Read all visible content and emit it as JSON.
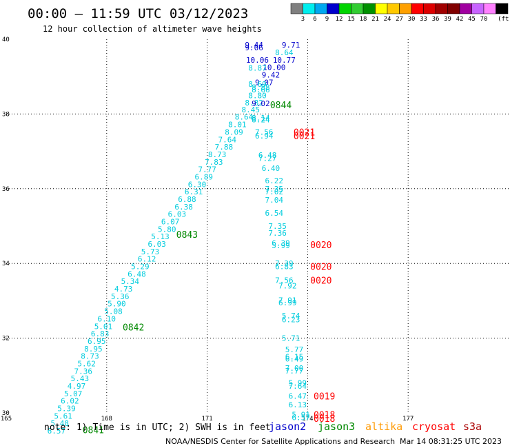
{
  "header": {
    "title": "00:00 – 11:59 UTC 03/12/2023",
    "subtitle": "12 hour collection of altimeter wave heights"
  },
  "colorbar": {
    "colors": [
      "#808080",
      "#00eeee",
      "#00a8f0",
      "#0000cc",
      "#00d400",
      "#32cd32",
      "#009000",
      "#ffff00",
      "#ffc800",
      "#ffa000",
      "#ff0000",
      "#dd0000",
      "#a00000",
      "#800000",
      "#a000a0",
      "#c864ff",
      "#ff80ff",
      "#000000"
    ],
    "labels": [
      "3",
      "6",
      "9",
      "12",
      "15",
      "18",
      "21",
      "24",
      "27",
      "30",
      "33",
      "36",
      "39",
      "42",
      "45",
      "70"
    ],
    "unit": "(ft)"
  },
  "map_frame": {
    "lon_range": [
      165,
      180
    ],
    "lat_range": [
      30,
      40
    ],
    "lon_ticks": [
      "165",
      "168",
      "171",
      "174",
      "177"
    ],
    "lat_ticks": [
      "40",
      "38",
      "36",
      "34",
      "32",
      "30"
    ],
    "grid_color": "#000000"
  },
  "chart_data": {
    "type": "scatter",
    "colors": {
      "wave_label": "#00ccdd",
      "wave_label_dark": "#0000cc",
      "time_green": "#008800",
      "time_red": "#ff0000"
    },
    "wave_labels": [
      {
        "lon": 172.4,
        "lat": 39.85,
        "text": "9.44",
        "tone": "dark"
      },
      {
        "lon": 172.4,
        "lat": 39.78,
        "text": "9.06",
        "tone": "dark"
      },
      {
        "lon": 173.5,
        "lat": 39.85,
        "text": "9.71",
        "tone": "dark"
      },
      {
        "lon": 173.3,
        "lat": 39.65,
        "text": "8.64",
        "tone": "light"
      },
      {
        "lon": 172.5,
        "lat": 39.45,
        "text": "10.06",
        "tone": "dark"
      },
      {
        "lon": 173.3,
        "lat": 39.45,
        "text": "10.77",
        "tone": "dark"
      },
      {
        "lon": 173.0,
        "lat": 39.25,
        "text": "10.00",
        "tone": "dark"
      },
      {
        "lon": 172.5,
        "lat": 39.23,
        "text": "8.87",
        "tone": "light"
      },
      {
        "lon": 172.9,
        "lat": 39.05,
        "text": "9.42",
        "tone": "dark"
      },
      {
        "lon": 172.7,
        "lat": 38.85,
        "text": "9.07",
        "tone": "dark"
      },
      {
        "lon": 172.5,
        "lat": 38.8,
        "text": "8.69",
        "tone": "light"
      },
      {
        "lon": 172.6,
        "lat": 38.72,
        "text": "8.88",
        "tone": "light"
      },
      {
        "lon": 172.6,
        "lat": 38.65,
        "text": "8.66",
        "tone": "light"
      },
      {
        "lon": 172.5,
        "lat": 38.5,
        "text": "8.80",
        "tone": "light"
      },
      {
        "lon": 172.4,
        "lat": 38.3,
        "text": "8.82",
        "tone": "light"
      },
      {
        "lon": 172.6,
        "lat": 38.28,
        "text": "9.02",
        "tone": "dark"
      },
      {
        "lon": 172.3,
        "lat": 38.12,
        "text": "8.45",
        "tone": "light"
      },
      {
        "lon": 172.1,
        "lat": 37.92,
        "text": "8.64",
        "tone": "light"
      },
      {
        "lon": 172.6,
        "lat": 37.9,
        "text": "8.14",
        "tone": "light"
      },
      {
        "lon": 172.6,
        "lat": 37.85,
        "text": "8.24",
        "tone": "light"
      },
      {
        "lon": 171.9,
        "lat": 37.72,
        "text": "8.01",
        "tone": "light"
      },
      {
        "lon": 171.8,
        "lat": 37.52,
        "text": "8.09",
        "tone": "light"
      },
      {
        "lon": 171.6,
        "lat": 37.32,
        "text": "7.64",
        "tone": "light"
      },
      {
        "lon": 171.5,
        "lat": 37.12,
        "text": "7.88",
        "tone": "light"
      },
      {
        "lon": 171.3,
        "lat": 36.92,
        "text": "8.73",
        "tone": "light"
      },
      {
        "lon": 171.2,
        "lat": 36.72,
        "text": "7.83",
        "tone": "light"
      },
      {
        "lon": 171.0,
        "lat": 36.52,
        "text": "7.77",
        "tone": "light"
      },
      {
        "lon": 170.9,
        "lat": 36.32,
        "text": "6.89",
        "tone": "light"
      },
      {
        "lon": 170.7,
        "lat": 36.12,
        "text": "6.30",
        "tone": "light"
      },
      {
        "lon": 170.6,
        "lat": 35.92,
        "text": "6.31",
        "tone": "light"
      },
      {
        "lon": 170.4,
        "lat": 35.72,
        "text": "6.88",
        "tone": "light"
      },
      {
        "lon": 170.3,
        "lat": 35.52,
        "text": "6.38",
        "tone": "light"
      },
      {
        "lon": 170.1,
        "lat": 35.32,
        "text": "6.03",
        "tone": "light"
      },
      {
        "lon": 169.9,
        "lat": 35.12,
        "text": "6.07",
        "tone": "light"
      },
      {
        "lon": 169.8,
        "lat": 34.92,
        "text": "5.80",
        "tone": "light"
      },
      {
        "lon": 169.6,
        "lat": 34.72,
        "text": "5.13",
        "tone": "light"
      },
      {
        "lon": 169.5,
        "lat": 34.52,
        "text": "6.03",
        "tone": "light"
      },
      {
        "lon": 169.3,
        "lat": 34.32,
        "text": "5.73",
        "tone": "light"
      },
      {
        "lon": 169.2,
        "lat": 34.12,
        "text": "6.12",
        "tone": "light"
      },
      {
        "lon": 169.0,
        "lat": 33.92,
        "text": "5.29",
        "tone": "light"
      },
      {
        "lon": 168.9,
        "lat": 33.72,
        "text": "6.48",
        "tone": "light"
      },
      {
        "lon": 168.7,
        "lat": 33.52,
        "text": "5.34",
        "tone": "light"
      },
      {
        "lon": 168.5,
        "lat": 33.32,
        "text": "4.73",
        "tone": "light"
      },
      {
        "lon": 168.4,
        "lat": 33.12,
        "text": "5.36",
        "tone": "light"
      },
      {
        "lon": 168.3,
        "lat": 32.92,
        "text": "5.90",
        "tone": "light"
      },
      {
        "lon": 168.2,
        "lat": 32.72,
        "text": "5.08",
        "tone": "light"
      },
      {
        "lon": 168.0,
        "lat": 32.52,
        "text": "6.10",
        "tone": "light"
      },
      {
        "lon": 167.9,
        "lat": 32.32,
        "text": "5.01",
        "tone": "light"
      },
      {
        "lon": 167.8,
        "lat": 32.12,
        "text": "6.83",
        "tone": "light"
      },
      {
        "lon": 167.7,
        "lat": 31.92,
        "text": "6.95",
        "tone": "light"
      },
      {
        "lon": 167.6,
        "lat": 31.72,
        "text": "8.95",
        "tone": "light"
      },
      {
        "lon": 167.5,
        "lat": 31.52,
        "text": "8.73",
        "tone": "light"
      },
      {
        "lon": 167.4,
        "lat": 31.32,
        "text": "5.62",
        "tone": "light"
      },
      {
        "lon": 167.3,
        "lat": 31.12,
        "text": "7.36",
        "tone": "light"
      },
      {
        "lon": 167.2,
        "lat": 30.92,
        "text": "5.43",
        "tone": "light"
      },
      {
        "lon": 167.1,
        "lat": 30.72,
        "text": "4.97",
        "tone": "light"
      },
      {
        "lon": 167.0,
        "lat": 30.52,
        "text": "5.07",
        "tone": "light"
      },
      {
        "lon": 166.9,
        "lat": 30.32,
        "text": "6.02",
        "tone": "light"
      },
      {
        "lon": 166.8,
        "lat": 30.12,
        "text": "5.39",
        "tone": "light"
      },
      {
        "lon": 166.7,
        "lat": 29.92,
        "text": "5.61",
        "tone": "light"
      },
      {
        "lon": 166.6,
        "lat": 29.72,
        "text": "5.48",
        "tone": "light"
      },
      {
        "lon": 166.5,
        "lat": 29.52,
        "text": "6.57",
        "tone": "light"
      },
      {
        "lon": 172.7,
        "lat": 37.52,
        "text": "7.56",
        "tone": "light"
      },
      {
        "lon": 172.7,
        "lat": 37.42,
        "text": "6.94",
        "tone": "light"
      },
      {
        "lon": 172.8,
        "lat": 36.9,
        "text": "6.48",
        "tone": "light"
      },
      {
        "lon": 172.8,
        "lat": 36.82,
        "text": "7.27",
        "tone": "light"
      },
      {
        "lon": 172.9,
        "lat": 36.55,
        "text": "6.40",
        "tone": "light"
      },
      {
        "lon": 173.0,
        "lat": 36.22,
        "text": "6.22",
        "tone": "light"
      },
      {
        "lon": 173.0,
        "lat": 36.0,
        "text": "7.35",
        "tone": "light"
      },
      {
        "lon": 173.0,
        "lat": 35.92,
        "text": "7.02",
        "tone": "light"
      },
      {
        "lon": 173.0,
        "lat": 35.7,
        "text": "7.04",
        "tone": "light"
      },
      {
        "lon": 173.0,
        "lat": 35.35,
        "text": "6.54",
        "tone": "light"
      },
      {
        "lon": 173.1,
        "lat": 35.0,
        "text": "7.35",
        "tone": "light"
      },
      {
        "lon": 173.1,
        "lat": 34.82,
        "text": "7.36",
        "tone": "light"
      },
      {
        "lon": 173.2,
        "lat": 34.55,
        "text": "6.39",
        "tone": "light"
      },
      {
        "lon": 173.2,
        "lat": 34.48,
        "text": "5.99",
        "tone": "light"
      },
      {
        "lon": 173.3,
        "lat": 34.0,
        "text": "7.39",
        "tone": "light"
      },
      {
        "lon": 173.3,
        "lat": 33.92,
        "text": "6.83",
        "tone": "light"
      },
      {
        "lon": 173.3,
        "lat": 33.55,
        "text": "7.56",
        "tone": "light"
      },
      {
        "lon": 173.4,
        "lat": 33.4,
        "text": "7.92",
        "tone": "light"
      },
      {
        "lon": 173.4,
        "lat": 33.02,
        "text": "7.91",
        "tone": "light"
      },
      {
        "lon": 173.4,
        "lat": 32.95,
        "text": "6.99",
        "tone": "light"
      },
      {
        "lon": 173.5,
        "lat": 32.6,
        "text": "5.74",
        "tone": "light"
      },
      {
        "lon": 173.5,
        "lat": 32.5,
        "text": "6.23",
        "tone": "light"
      },
      {
        "lon": 173.5,
        "lat": 32.0,
        "text": "5.71",
        "tone": "light"
      },
      {
        "lon": 173.6,
        "lat": 31.7,
        "text": "5.77",
        "tone": "light"
      },
      {
        "lon": 173.6,
        "lat": 31.5,
        "text": "6.15",
        "tone": "light"
      },
      {
        "lon": 173.6,
        "lat": 31.45,
        "text": "6.49",
        "tone": "light"
      },
      {
        "lon": 173.6,
        "lat": 31.2,
        "text": "7.00",
        "tone": "light"
      },
      {
        "lon": 173.6,
        "lat": 31.13,
        "text": "7.77",
        "tone": "light"
      },
      {
        "lon": 173.7,
        "lat": 30.8,
        "text": "5.99",
        "tone": "light"
      },
      {
        "lon": 173.7,
        "lat": 30.72,
        "text": "7.64",
        "tone": "light"
      },
      {
        "lon": 173.7,
        "lat": 30.45,
        "text": "6.47",
        "tone": "light"
      },
      {
        "lon": 173.7,
        "lat": 30.22,
        "text": "6.13",
        "tone": "light"
      },
      {
        "lon": 173.8,
        "lat": 29.95,
        "text": "5.91",
        "tone": "light"
      },
      {
        "lon": 173.8,
        "lat": 29.88,
        "text": "6.57",
        "tone": "light"
      }
    ],
    "time_labels": [
      {
        "lon": 173.2,
        "lat": 38.25,
        "text": "0844",
        "color": "green"
      },
      {
        "lon": 170.4,
        "lat": 34.78,
        "text": "0843",
        "color": "green"
      },
      {
        "lon": 168.8,
        "lat": 32.3,
        "text": "0842",
        "color": "green"
      },
      {
        "lon": 167.6,
        "lat": 29.55,
        "text": "0841",
        "color": "green"
      },
      {
        "lon": 173.9,
        "lat": 37.52,
        "text": "0021",
        "color": "red"
      },
      {
        "lon": 173.9,
        "lat": 37.42,
        "text": "0021",
        "color": "red"
      },
      {
        "lon": 174.4,
        "lat": 34.5,
        "text": "0020",
        "color": "red"
      },
      {
        "lon": 174.4,
        "lat": 33.92,
        "text": "0020",
        "color": "red"
      },
      {
        "lon": 174.4,
        "lat": 33.55,
        "text": "0020",
        "color": "red"
      },
      {
        "lon": 174.5,
        "lat": 30.45,
        "text": "0019",
        "color": "red"
      },
      {
        "lon": 174.5,
        "lat": 29.95,
        "text": "0018",
        "color": "red"
      },
      {
        "lon": 174.5,
        "lat": 29.85,
        "text": "0018",
        "color": "red"
      }
    ]
  },
  "footer": {
    "note": "note: 1) Time is in UTC; 2) SWH is in feet",
    "satellites": [
      {
        "name": "jason2",
        "color": "#0000cc"
      },
      {
        "name": "jason3",
        "color": "#008800"
      },
      {
        "name": "altika",
        "color": "#ff9900"
      },
      {
        "name": "cryosat",
        "color": "#ff0000"
      },
      {
        "name": "s3a",
        "color": "#aa0000"
      }
    ],
    "credit": "NOAA/NESDIS Center for Satellite Applications and Research",
    "timestamp": "Mar 14 08:31:25 UTC 2023"
  }
}
